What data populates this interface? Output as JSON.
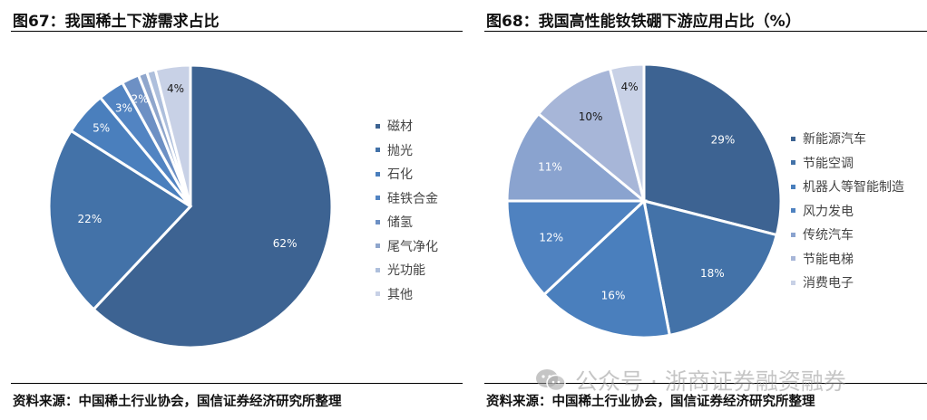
{
  "left": {
    "title": "图67：我国稀土下游需求占比",
    "source": "资料来源：中国稀土行业协会，国信证券经济研究所整理",
    "legend": [
      "磁材",
      "抛光",
      "石化",
      "硅铁合金",
      "储氢",
      "尾气净化",
      "光功能",
      "其他"
    ]
  },
  "right": {
    "title": "图68：我国高性能钕铁硼下游应用占比（%）",
    "source": "资料来源：中国稀土行业协会，国信证券经济研究所整理",
    "legend": [
      "新能源汽车",
      "节能空调",
      "机器人等智能制造",
      "风力发电",
      "传统汽车",
      "节能电梯",
      "消费电子"
    ]
  },
  "watermark": "公众号 · 浙商证券融资融券",
  "chart_data": [
    {
      "type": "pie",
      "title": "图67：我国稀土下游需求占比",
      "categories": [
        "磁材",
        "抛光",
        "石化",
        "硅铁合金",
        "储氢",
        "尾气净化",
        "光功能",
        "其他"
      ],
      "values": [
        62,
        22,
        5,
        3,
        2,
        1,
        1,
        4
      ],
      "labels": [
        "62%",
        "22%",
        "5%",
        "3%",
        "2%",
        "",
        "",
        "4%"
      ],
      "colors": [
        "#3d6392",
        "#4372a8",
        "#4a7fbd",
        "#5284c2",
        "#6d90c4",
        "#8fa6cc",
        "#aebfdc",
        "#c8d1e6"
      ],
      "legend_position": "right",
      "start_angle": "12 o'clock, clockwise"
    },
    {
      "type": "pie",
      "title": "图68：我国高性能钕铁硼下游应用占比（%）",
      "categories": [
        "新能源汽车",
        "节能空调",
        "机器人等智能制造",
        "风力发电",
        "传统汽车",
        "节能电梯",
        "消费电子"
      ],
      "values": [
        29,
        18,
        16,
        12,
        11,
        10,
        4
      ],
      "labels": [
        "29%",
        "18%",
        "16%",
        "12%",
        "11%",
        "10%",
        "4%"
      ],
      "colors": [
        "#3d6392",
        "#4372a8",
        "#4a7fbd",
        "#4f82c0",
        "#8aa3cf",
        "#a7b6d8",
        "#c8d1e6"
      ],
      "legend_position": "right",
      "start_angle": "12 o'clock, clockwise"
    }
  ]
}
